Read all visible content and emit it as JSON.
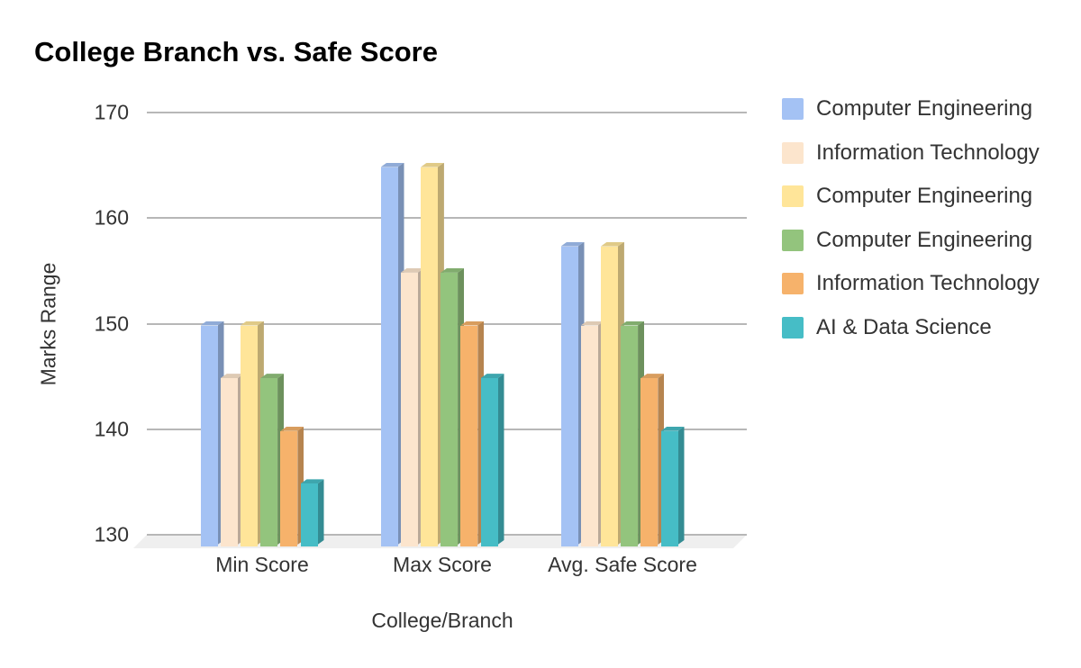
{
  "title": "College Branch vs. Safe Score",
  "chart_data": {
    "type": "bar",
    "subtype": "3d-grouped-columns",
    "title": "College Branch vs. Safe Score",
    "categories": [
      "Min Score",
      "Max Score",
      "Avg. Safe Score"
    ],
    "series": [
      {
        "name": "Computer Engineering",
        "color": "#a4c2f4",
        "values": [
          150,
          165,
          157.5
        ]
      },
      {
        "name": "Information Technology",
        "color": "#fce5cd",
        "values": [
          145,
          155,
          150
        ]
      },
      {
        "name": "Computer Engineering",
        "color": "#ffe599",
        "values": [
          150,
          165,
          157.5
        ]
      },
      {
        "name": "Computer Engineering",
        "color": "#93c47d",
        "values": [
          145,
          155,
          150
        ]
      },
      {
        "name": "Information Technology",
        "color": "#f6b26b",
        "values": [
          140,
          150,
          145
        ]
      },
      {
        "name": "AI & Data Science",
        "color": "#46bdc6",
        "values": [
          135,
          145,
          140
        ]
      }
    ],
    "xlabel": "College/Branch",
    "ylabel": "Marks Range",
    "ylim": [
      130,
      170
    ],
    "yticks": [
      130,
      140,
      150,
      160,
      170
    ],
    "grid": true,
    "legend_position": "right"
  },
  "colors": {
    "background": "#ffffff",
    "gridline": "#b7b7b7",
    "floor": "#efefef",
    "axis_text": "#333333",
    "title_text": "#000000"
  }
}
